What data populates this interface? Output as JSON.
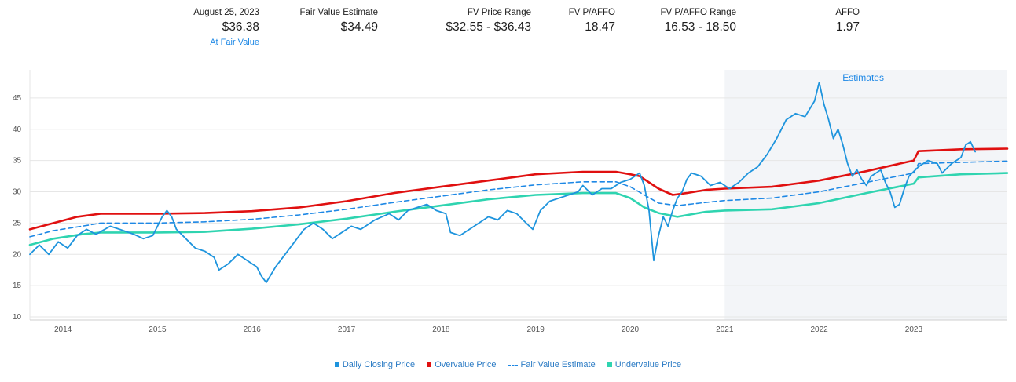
{
  "header": {
    "date": {
      "label": "August 25, 2023",
      "value": "$36.38",
      "sub": "At Fair Value"
    },
    "fair_value": {
      "label": "Fair Value Estimate",
      "value": "$34.49"
    },
    "fv_price_range": {
      "label": "FV Price Range",
      "value": "$32.55 - $36.43"
    },
    "fv_p_affo": {
      "label": "FV P/AFFO",
      "value": "18.47"
    },
    "fv_p_affo_range": {
      "label": "FV P/AFFO Range",
      "value": "16.53 - 18.50"
    },
    "affo": {
      "label": "AFFO",
      "value": "1.97"
    }
  },
  "colors": {
    "price": "#1e94dd",
    "overvalue": "#e01010",
    "fair_value": "#1e88e5",
    "undervalue": "#2fd4b0",
    "estimates_bg": "#f3f5f8"
  },
  "chart_data": {
    "type": "line",
    "estimates_label": "Estimates",
    "estimates_start": 2021.0,
    "xlim": [
      2013.65,
      2023.99
    ],
    "ylim": [
      9.5,
      49.5
    ],
    "x_ticks": [
      2014,
      2015,
      2016,
      2017,
      2018,
      2019,
      2020,
      2021,
      2022,
      2023
    ],
    "x_tick_labels": [
      "2014",
      "2015",
      "2016",
      "2017",
      "2018",
      "2019",
      "2020",
      "2021",
      "2022",
      "2023"
    ],
    "y_ticks": [
      10,
      15,
      20,
      25,
      30,
      35,
      40,
      45
    ],
    "y_tick_labels": [
      "10",
      "15",
      "20",
      "25",
      "30",
      "35",
      "40",
      "45"
    ],
    "grid": true,
    "legend_position": "bottom",
    "series": [
      {
        "name": "Daily Closing Price",
        "style": "line",
        "points": [
          [
            2013.65,
            20.0
          ],
          [
            2013.75,
            21.5
          ],
          [
            2013.85,
            20.0
          ],
          [
            2013.95,
            22.0
          ],
          [
            2014.05,
            21.0
          ],
          [
            2014.15,
            23.0
          ],
          [
            2014.25,
            24.0
          ],
          [
            2014.35,
            23.2
          ],
          [
            2014.5,
            24.5
          ],
          [
            2014.6,
            24.0
          ],
          [
            2014.75,
            23.2
          ],
          [
            2014.85,
            22.5
          ],
          [
            2014.95,
            23.0
          ],
          [
            2015.0,
            24.5
          ],
          [
            2015.05,
            26.0
          ],
          [
            2015.1,
            27.0
          ],
          [
            2015.15,
            26.0
          ],
          [
            2015.2,
            24.0
          ],
          [
            2015.3,
            22.5
          ],
          [
            2015.4,
            21.0
          ],
          [
            2015.5,
            20.5
          ],
          [
            2015.6,
            19.5
          ],
          [
            2015.65,
            17.5
          ],
          [
            2015.75,
            18.5
          ],
          [
            2015.85,
            20.0
          ],
          [
            2015.95,
            19.0
          ],
          [
            2016.05,
            18.0
          ],
          [
            2016.1,
            16.5
          ],
          [
            2016.15,
            15.5
          ],
          [
            2016.25,
            18.0
          ],
          [
            2016.35,
            20.0
          ],
          [
            2016.45,
            22.0
          ],
          [
            2016.55,
            24.0
          ],
          [
            2016.65,
            25.0
          ],
          [
            2016.75,
            24.0
          ],
          [
            2016.85,
            22.5
          ],
          [
            2016.95,
            23.5
          ],
          [
            2017.05,
            24.5
          ],
          [
            2017.15,
            24.0
          ],
          [
            2017.3,
            25.5
          ],
          [
            2017.45,
            26.5
          ],
          [
            2017.55,
            25.5
          ],
          [
            2017.65,
            27.0
          ],
          [
            2017.75,
            27.5
          ],
          [
            2017.85,
            28.0
          ],
          [
            2017.95,
            27.0
          ],
          [
            2018.05,
            26.5
          ],
          [
            2018.1,
            23.5
          ],
          [
            2018.2,
            23.0
          ],
          [
            2018.3,
            24.0
          ],
          [
            2018.4,
            25.0
          ],
          [
            2018.5,
            26.0
          ],
          [
            2018.6,
            25.5
          ],
          [
            2018.7,
            27.0
          ],
          [
            2018.8,
            26.5
          ],
          [
            2018.9,
            25.0
          ],
          [
            2018.97,
            24.0
          ],
          [
            2019.05,
            27.0
          ],
          [
            2019.15,
            28.5
          ],
          [
            2019.25,
            29.0
          ],
          [
            2019.35,
            29.5
          ],
          [
            2019.45,
            30.0
          ],
          [
            2019.5,
            31.0
          ],
          [
            2019.6,
            29.5
          ],
          [
            2019.7,
            30.5
          ],
          [
            2019.8,
            30.5
          ],
          [
            2019.9,
            31.5
          ],
          [
            2020.0,
            32.0
          ],
          [
            2020.1,
            33.0
          ],
          [
            2020.15,
            31.0
          ],
          [
            2020.2,
            27.0
          ],
          [
            2020.25,
            19.0
          ],
          [
            2020.3,
            23.0
          ],
          [
            2020.35,
            26.0
          ],
          [
            2020.4,
            24.5
          ],
          [
            2020.45,
            27.0
          ],
          [
            2020.5,
            29.0
          ],
          [
            2020.55,
            30.0
          ],
          [
            2020.6,
            32.0
          ],
          [
            2020.65,
            33.0
          ],
          [
            2020.75,
            32.5
          ],
          [
            2020.85,
            31.0
          ],
          [
            2020.95,
            31.5
          ],
          [
            2021.05,
            30.5
          ],
          [
            2021.15,
            31.5
          ],
          [
            2021.25,
            33.0
          ],
          [
            2021.35,
            34.0
          ],
          [
            2021.45,
            36.0
          ],
          [
            2021.55,
            38.5
          ],
          [
            2021.65,
            41.5
          ],
          [
            2021.75,
            42.5
          ],
          [
            2021.85,
            42.0
          ],
          [
            2021.95,
            44.5
          ],
          [
            2022.0,
            47.5
          ],
          [
            2022.05,
            44.0
          ],
          [
            2022.1,
            41.5
          ],
          [
            2022.15,
            38.5
          ],
          [
            2022.2,
            40.0
          ],
          [
            2022.25,
            37.5
          ],
          [
            2022.3,
            34.5
          ],
          [
            2022.35,
            32.5
          ],
          [
            2022.4,
            33.5
          ],
          [
            2022.45,
            32.0
          ],
          [
            2022.5,
            31.0
          ],
          [
            2022.55,
            32.5
          ],
          [
            2022.65,
            33.5
          ],
          [
            2022.7,
            31.5
          ],
          [
            2022.75,
            30.0
          ],
          [
            2022.8,
            27.5
          ],
          [
            2022.85,
            28.0
          ],
          [
            2022.9,
            30.5
          ],
          [
            2022.95,
            32.5
          ],
          [
            2023.05,
            34.0
          ],
          [
            2023.15,
            35.0
          ],
          [
            2023.25,
            34.5
          ],
          [
            2023.3,
            33.0
          ],
          [
            2023.4,
            34.5
          ],
          [
            2023.5,
            35.5
          ],
          [
            2023.55,
            37.5
          ],
          [
            2023.6,
            38.0
          ],
          [
            2023.65,
            36.4
          ]
        ]
      },
      {
        "name": "Overvalue Price",
        "style": "line",
        "points": [
          [
            2013.65,
            24.0
          ],
          [
            2013.9,
            25.0
          ],
          [
            2014.15,
            26.0
          ],
          [
            2014.4,
            26.5
          ],
          [
            2015.0,
            26.5
          ],
          [
            2015.5,
            26.6
          ],
          [
            2016.0,
            26.9
          ],
          [
            2016.5,
            27.5
          ],
          [
            2017.0,
            28.5
          ],
          [
            2017.5,
            29.8
          ],
          [
            2018.0,
            30.8
          ],
          [
            2018.5,
            31.8
          ],
          [
            2019.0,
            32.8
          ],
          [
            2019.5,
            33.2
          ],
          [
            2019.85,
            33.2
          ],
          [
            2020.0,
            32.8
          ],
          [
            2020.1,
            32.5
          ],
          [
            2020.2,
            31.5
          ],
          [
            2020.3,
            30.5
          ],
          [
            2020.45,
            29.5
          ],
          [
            2020.6,
            29.8
          ],
          [
            2020.8,
            30.3
          ],
          [
            2021.0,
            30.5
          ],
          [
            2021.5,
            30.8
          ],
          [
            2022.0,
            31.8
          ],
          [
            2022.5,
            33.3
          ],
          [
            2023.0,
            35.0
          ],
          [
            2023.05,
            36.5
          ],
          [
            2023.5,
            36.8
          ],
          [
            2023.99,
            36.9
          ]
        ]
      },
      {
        "name": "Fair Value Estimate",
        "style": "dashed",
        "points": [
          [
            2013.65,
            22.8
          ],
          [
            2013.9,
            23.8
          ],
          [
            2014.2,
            24.5
          ],
          [
            2014.4,
            25.0
          ],
          [
            2015.0,
            25.0
          ],
          [
            2015.5,
            25.2
          ],
          [
            2016.0,
            25.6
          ],
          [
            2016.5,
            26.3
          ],
          [
            2017.0,
            27.2
          ],
          [
            2017.5,
            28.3
          ],
          [
            2018.0,
            29.3
          ],
          [
            2018.5,
            30.3
          ],
          [
            2019.0,
            31.1
          ],
          [
            2019.5,
            31.6
          ],
          [
            2019.85,
            31.6
          ],
          [
            2020.0,
            30.8
          ],
          [
            2020.15,
            29.5
          ],
          [
            2020.3,
            28.2
          ],
          [
            2020.5,
            27.8
          ],
          [
            2020.8,
            28.3
          ],
          [
            2021.0,
            28.6
          ],
          [
            2021.5,
            29.0
          ],
          [
            2022.0,
            30.0
          ],
          [
            2022.5,
            31.5
          ],
          [
            2023.0,
            33.0
          ],
          [
            2023.05,
            34.5
          ],
          [
            2023.5,
            34.7
          ],
          [
            2023.99,
            34.9
          ]
        ]
      },
      {
        "name": "Undervalue Price",
        "style": "line",
        "points": [
          [
            2013.65,
            21.5
          ],
          [
            2013.9,
            22.5
          ],
          [
            2014.2,
            23.2
          ],
          [
            2014.4,
            23.5
          ],
          [
            2015.0,
            23.5
          ],
          [
            2015.5,
            23.6
          ],
          [
            2016.0,
            24.1
          ],
          [
            2016.5,
            24.8
          ],
          [
            2017.0,
            25.7
          ],
          [
            2017.5,
            26.8
          ],
          [
            2018.0,
            27.8
          ],
          [
            2018.5,
            28.8
          ],
          [
            2019.0,
            29.5
          ],
          [
            2019.5,
            29.8
          ],
          [
            2019.85,
            29.8
          ],
          [
            2020.0,
            29.0
          ],
          [
            2020.15,
            27.5
          ],
          [
            2020.3,
            26.6
          ],
          [
            2020.5,
            26.0
          ],
          [
            2020.8,
            26.8
          ],
          [
            2021.0,
            27.0
          ],
          [
            2021.5,
            27.2
          ],
          [
            2022.0,
            28.2
          ],
          [
            2022.5,
            29.8
          ],
          [
            2023.0,
            31.3
          ],
          [
            2023.05,
            32.3
          ],
          [
            2023.5,
            32.8
          ],
          [
            2023.99,
            33.0
          ]
        ]
      }
    ]
  },
  "legend": [
    {
      "label": "Daily Closing Price",
      "marker": "square",
      "color_key": "price"
    },
    {
      "label": "Overvalue Price",
      "marker": "square",
      "color_key": "overvalue"
    },
    {
      "label": "Fair Value Estimate",
      "marker": "dash",
      "color_key": "fair_value"
    },
    {
      "label": "Undervalue Price",
      "marker": "square",
      "color_key": "undervalue"
    }
  ]
}
